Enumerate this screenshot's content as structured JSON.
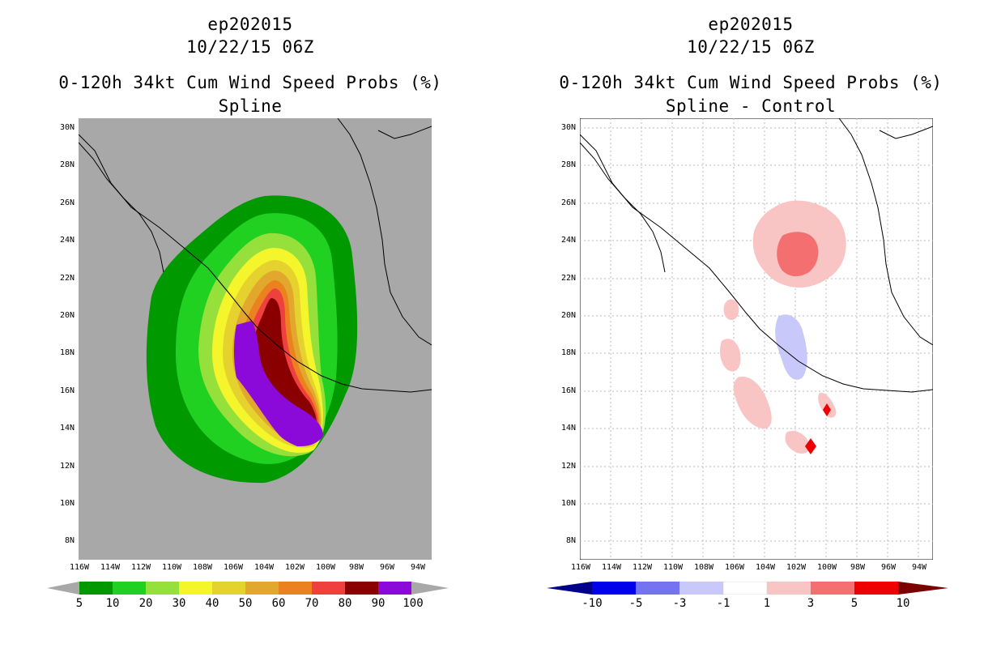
{
  "panels": [
    {
      "id": "spline",
      "storm": "ep202015",
      "date": "10/22/15 06Z",
      "product": "0-120h 34kt Cum Wind Speed Probs (%)",
      "subtitle": "Spline",
      "colorbar": {
        "labels": [
          "5",
          "10",
          "20",
          "30",
          "40",
          "50",
          "60",
          "70",
          "80",
          "90",
          "100"
        ],
        "colors": [
          "#009900",
          "#21d121",
          "#96e03b",
          "#f4f52b",
          "#e6d22f",
          "#e1a82d",
          "#ec8120",
          "#ef4040",
          "#8a0000",
          "#8b0ad9"
        ]
      }
    },
    {
      "id": "difference",
      "storm": "ep202015",
      "date": "10/22/15 06Z",
      "product": "0-120h 34kt Cum Wind Speed Probs (%)",
      "subtitle": "Spline - Control",
      "colorbar": {
        "labels": [
          "-10",
          "-5",
          "-3",
          "-1",
          "1",
          "3",
          "5",
          "10"
        ],
        "colors": [
          "#0000ea",
          "#7474f0",
          "#c8c8fa",
          "#ffffff",
          "#f8c4c4",
          "#f47070",
          "#ee0000"
        ]
      }
    }
  ],
  "axes": {
    "lat_labels": [
      "30N",
      "28N",
      "26N",
      "24N",
      "22N",
      "20N",
      "18N",
      "16N",
      "14N",
      "12N",
      "10N",
      "8N"
    ],
    "lon_labels": [
      "116W",
      "114W",
      "112W",
      "110W",
      "108W",
      "106W",
      "104W",
      "102W",
      "100W",
      "98W",
      "96W",
      "94W"
    ]
  },
  "colors": {
    "land_background": "#a8a8a8",
    "coastline": "#000000",
    "grid": "#bbbbbb"
  }
}
